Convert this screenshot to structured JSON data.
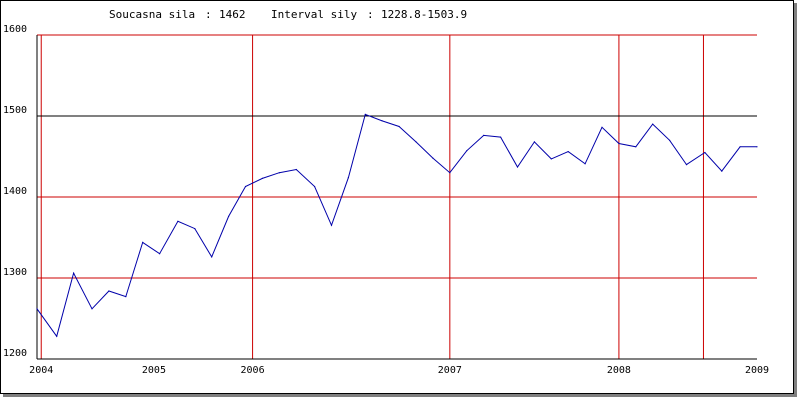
{
  "header": {
    "current_label": "Soucasna sila",
    "current_value": "1462",
    "interval_label": "Interval sily",
    "interval_value": "1228.8-1503.9"
  },
  "colors": {
    "grid": "#cc0000",
    "reference_line": "#000000",
    "series": "#0000aa",
    "axis": "#000000"
  },
  "chart_data": {
    "type": "line",
    "title": "",
    "xlabel": "",
    "ylabel": "",
    "ylim": [
      1200,
      1600
    ],
    "xlim": [
      2003.97,
      2009.08
    ],
    "yticks": [
      1200,
      1300,
      1400,
      1500,
      1600
    ],
    "reference_line": 1500,
    "x_ticks": [
      {
        "label": "2004",
        "x": 2004.0,
        "gridline": true
      },
      {
        "label": "2005",
        "x": 2004.8,
        "gridline": false
      },
      {
        "label": "2006",
        "x": 2005.5,
        "gridline": true
      },
      {
        "label": "2007",
        "x": 2006.9,
        "gridline": true
      },
      {
        "label": "2008",
        "x": 2008.1,
        "gridline": true
      },
      {
        "label": "2009",
        "x": 2009.08,
        "gridline": false
      }
    ],
    "extra_vertical_gridlines": [
      2008.7
    ],
    "series": [
      {
        "x": [
          2003.97,
          2004.11,
          2004.23,
          2004.36,
          2004.48,
          2004.6,
          2004.72,
          2004.84,
          2004.97,
          2005.09,
          2005.21,
          2005.33,
          2005.45,
          2005.57,
          2005.69,
          2005.81,
          2005.94,
          2006.06,
          2006.18,
          2006.3,
          2006.42,
          2006.54,
          2006.66,
          2006.78,
          2006.9,
          2007.02,
          2007.14,
          2007.26,
          2007.38,
          2007.5,
          2007.62,
          2007.74,
          2007.86,
          2007.98,
          2008.1,
          2008.22,
          2008.34,
          2008.46,
          2008.58,
          2008.71,
          2008.83,
          2008.96,
          2009.08
        ],
        "y": [
          1262,
          1228,
          1306,
          1262,
          1284,
          1277,
          1344,
          1330,
          1370,
          1361,
          1326,
          1376,
          1413,
          1423,
          1430,
          1434,
          1413,
          1365,
          1424,
          1502,
          1494,
          1487,
          1468,
          1448,
          1430,
          1457,
          1476,
          1474,
          1437,
          1468,
          1447,
          1456,
          1441,
          1486,
          1466,
          1462,
          1490,
          1470,
          1440,
          1455,
          1432,
          1462,
          1462
        ]
      }
    ]
  }
}
